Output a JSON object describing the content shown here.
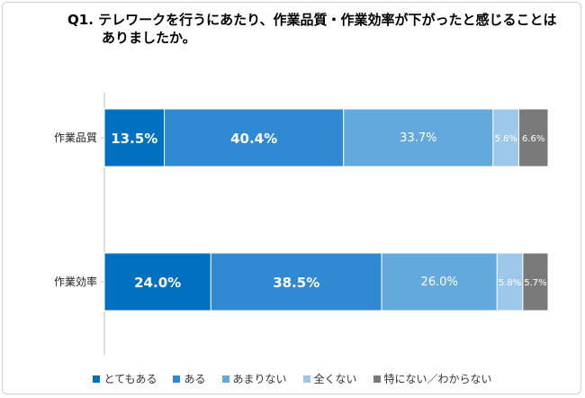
{
  "title": {
    "prefix": "Q1.",
    "line1": "テレワークを行うにあたり、作業品質・作業効率が下がったと感じることは",
    "line2": "ありましたか。"
  },
  "colors": [
    "#0070c0",
    "#2f8ad3",
    "#64a9de",
    "#9dc8ec",
    "#7a7a7a"
  ],
  "chart_data": {
    "type": "bar",
    "orientation": "horizontal-stacked-100",
    "categories": [
      "作業品質",
      "作業効率"
    ],
    "series": [
      {
        "name": "とてもある",
        "values": [
          13.5,
          24.0
        ]
      },
      {
        "name": "ある",
        "values": [
          40.4,
          38.5
        ]
      },
      {
        "name": "あまりない",
        "values": [
          33.7,
          26.0
        ]
      },
      {
        "name": "全くない",
        "values": [
          5.8,
          5.8
        ]
      },
      {
        "name": "特にない／わからない",
        "values": [
          6.6,
          5.7
        ]
      }
    ],
    "labels": [
      [
        "13.5%",
        "40.4%",
        "33.7%",
        "5.8%",
        "6.6%"
      ],
      [
        "24.0%",
        "38.5%",
        "26.0%",
        "5.8%",
        "5.7%"
      ]
    ],
    "unit": "%",
    "legend_position": "bottom"
  }
}
